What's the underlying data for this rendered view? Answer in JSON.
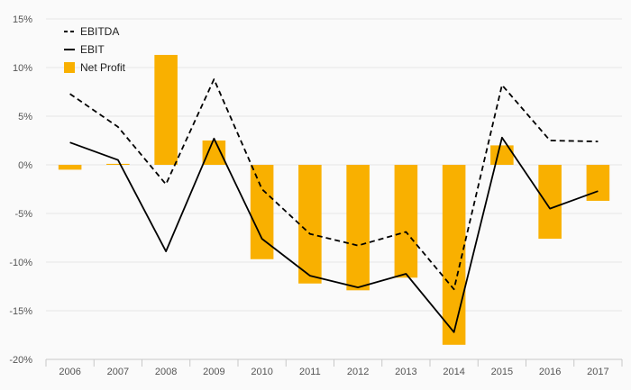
{
  "chart_data": {
    "type": "bar+line",
    "categories": [
      "2006",
      "2007",
      "2008",
      "2009",
      "2010",
      "2011",
      "2012",
      "2013",
      "2014",
      "2015",
      "2016",
      "2017"
    ],
    "series": [
      {
        "name": "EBITDA",
        "kind": "line",
        "style": "dashed",
        "color": "#000000",
        "values": [
          7.3,
          3.9,
          -2.0,
          8.8,
          -2.5,
          -7.1,
          -8.3,
          -6.9,
          -12.8,
          8.2,
          2.5,
          2.4
        ]
      },
      {
        "name": "EBIT",
        "kind": "line",
        "style": "solid",
        "color": "#000000",
        "values": [
          2.3,
          0.5,
          -8.9,
          2.7,
          -7.6,
          -11.4,
          -12.6,
          -11.2,
          -17.2,
          2.8,
          -4.5,
          -2.7
        ]
      },
      {
        "name": "Net Profit",
        "kind": "bar",
        "color": "#F9B000",
        "values": [
          -0.5,
          0.1,
          11.3,
          2.5,
          -9.7,
          -12.2,
          -12.9,
          -11.6,
          -18.5,
          2.0,
          -7.6,
          -3.7
        ]
      }
    ],
    "ylim": [
      -20,
      15
    ],
    "yticks": [
      15,
      10,
      5,
      0,
      -5,
      -10,
      -15,
      -20
    ],
    "ytick_labels": [
      "15%",
      "10%",
      "5%",
      "0%",
      "-5%",
      "-10%",
      "-15%",
      "-20%"
    ],
    "grid": true,
    "legend_position": "top-left",
    "xlabel": "",
    "ylabel": ""
  }
}
